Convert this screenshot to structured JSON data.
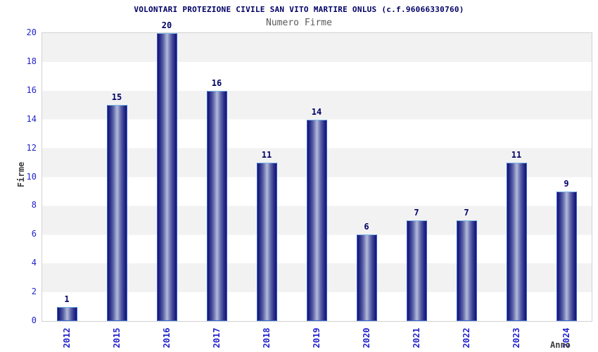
{
  "chart_data": {
    "type": "bar",
    "title": "VOLONTARI PROTEZIONE CIVILE SAN VITO MARTIRE ONLUS (c.f.96066330760)",
    "subtitle": "Numero Firme",
    "xlabel": "Anno",
    "ylabel": "Firme",
    "categories": [
      "2012",
      "2015",
      "2016",
      "2017",
      "2018",
      "2019",
      "2020",
      "2021",
      "2022",
      "2023",
      "2024"
    ],
    "values": [
      1,
      15,
      20,
      16,
      11,
      14,
      6,
      7,
      7,
      11,
      9
    ],
    "ylim": [
      0,
      20
    ],
    "ytick_step": 2,
    "yticks": [
      0,
      2,
      4,
      6,
      8,
      10,
      12,
      14,
      16,
      18,
      20
    ],
    "grid": "alternating-horizontal-bands",
    "legend": "none",
    "bar_value_labels_visible": true,
    "colors": {
      "title": "#000066",
      "subtitle": "#5a5a5a",
      "axis_titles": "#3f3f3f",
      "tick_labels": "#2222cc",
      "value_labels": "#000066",
      "bar_dark": "#14146e",
      "bar_light": "#b3bada",
      "bar_border": "#3a66cc",
      "bar_border_top": "#7db9ea",
      "band_gray": "#f2f2f2",
      "band_white": "#ffffff",
      "plot_border": "#d2d2d2",
      "background": "#ffffff"
    }
  }
}
